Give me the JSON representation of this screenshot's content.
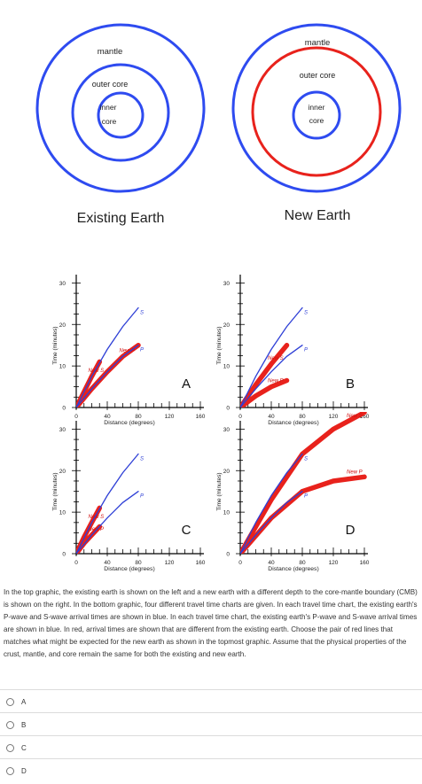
{
  "top_graphic": {
    "left": {
      "caption": "Existing Earth",
      "labels": {
        "mantle": "mantle",
        "outer_core": "outer core",
        "inner_1": "inner",
        "inner_2": "core"
      },
      "colors": {
        "mantle_boundary": "#2e4bf0",
        "cmb": "#2e4bf0",
        "inner_core": "#2e4bf0"
      }
    },
    "right": {
      "caption": "New Earth",
      "labels": {
        "mantle": "mantle",
        "outer_core": "outer core",
        "inner_1": "inner",
        "inner_2": "core"
      },
      "colors": {
        "mantle_boundary": "#2e4bf0",
        "cmb": "#e8221c",
        "inner_core": "#2e4bf0"
      }
    }
  },
  "chart_data": [
    {
      "type": "line",
      "panel": "A",
      "xlabel": "Distance (degrees)",
      "ylabel": "Time (minutes)",
      "xticks": [
        "0",
        "40",
        "80",
        "120",
        "160"
      ],
      "yticks": [
        "0",
        "10",
        "20",
        "30"
      ],
      "xlim": [
        0,
        160
      ],
      "ylim": [
        0,
        32
      ],
      "series": [
        {
          "name": "S",
          "color": "#2e3fd6",
          "x": [
            0,
            20,
            40,
            60,
            80
          ],
          "y": [
            0,
            7.5,
            14,
            19.5,
            24
          ]
        },
        {
          "name": "P",
          "color": "#2e3fd6",
          "x": [
            0,
            20,
            40,
            60,
            80
          ],
          "y": [
            0,
            4.5,
            8.6,
            12.3,
            15
          ]
        },
        {
          "name": "New S",
          "color": "#e8221c",
          "x": [
            0,
            20,
            30
          ],
          "y": [
            0,
            7.5,
            11
          ]
        },
        {
          "name": "New P",
          "color": "#e8221c",
          "x": [
            0,
            20,
            40,
            60,
            80
          ],
          "y": [
            0,
            4.5,
            8.6,
            12.3,
            15
          ]
        }
      ]
    },
    {
      "type": "line",
      "panel": "B",
      "xlabel": "Distance (degrees)",
      "ylabel": "Time (minutes)",
      "xticks": [
        "0",
        "40",
        "80",
        "120",
        "160"
      ],
      "yticks": [
        "0",
        "10",
        "20",
        "30"
      ],
      "xlim": [
        0,
        160
      ],
      "ylim": [
        0,
        32
      ],
      "series": [
        {
          "name": "S",
          "color": "#2e3fd6",
          "x": [
            0,
            20,
            40,
            60,
            80
          ],
          "y": [
            0,
            7.5,
            14,
            19.5,
            24
          ]
        },
        {
          "name": "P",
          "color": "#2e3fd6",
          "x": [
            0,
            20,
            40,
            60,
            80
          ],
          "y": [
            0,
            4.5,
            8.6,
            12.3,
            15
          ]
        },
        {
          "name": "New S",
          "color": "#e8221c",
          "x": [
            0,
            20,
            40,
            60
          ],
          "y": [
            0,
            5.5,
            10.5,
            15
          ]
        },
        {
          "name": "New P",
          "color": "#e8221c",
          "x": [
            0,
            20,
            40,
            60
          ],
          "y": [
            0,
            2.8,
            5,
            6.5
          ]
        }
      ]
    },
    {
      "type": "line",
      "panel": "C",
      "xlabel": "Distance (degrees)",
      "ylabel": "Time (minutes)",
      "xticks": [
        "0",
        "40",
        "80",
        "120",
        "160"
      ],
      "yticks": [
        "0",
        "10",
        "20",
        "30"
      ],
      "xlim": [
        0,
        160
      ],
      "ylim": [
        0,
        32
      ],
      "series": [
        {
          "name": "S",
          "color": "#2e3fd6",
          "x": [
            0,
            20,
            40,
            60,
            80
          ],
          "y": [
            0,
            7.5,
            14,
            19.5,
            24
          ]
        },
        {
          "name": "P",
          "color": "#2e3fd6",
          "x": [
            0,
            20,
            40,
            60,
            80
          ],
          "y": [
            0,
            4.5,
            8.6,
            12.3,
            15
          ]
        },
        {
          "name": "New S",
          "color": "#e8221c",
          "x": [
            0,
            10,
            20,
            30
          ],
          "y": [
            0,
            4,
            7.5,
            11
          ]
        },
        {
          "name": "New P",
          "color": "#e8221c",
          "x": [
            0,
            10,
            20,
            30
          ],
          "y": [
            0,
            2.5,
            4.5,
            6.5
          ]
        }
      ]
    },
    {
      "type": "line",
      "panel": "D",
      "xlabel": "Distance (degrees)",
      "ylabel": "Time (minutes)",
      "xticks": [
        "0",
        "40",
        "80",
        "120",
        "160"
      ],
      "yticks": [
        "0",
        "10",
        "20",
        "30"
      ],
      "xlim": [
        0,
        160
      ],
      "ylim": [
        0,
        32
      ],
      "series": [
        {
          "name": "S",
          "color": "#2e3fd6",
          "x": [
            0,
            20,
            40,
            60,
            80
          ],
          "y": [
            0,
            7.5,
            14,
            19.5,
            24
          ]
        },
        {
          "name": "P",
          "color": "#2e3fd6",
          "x": [
            0,
            20,
            40,
            60,
            80
          ],
          "y": [
            0,
            4.5,
            8.6,
            12.3,
            15
          ]
        },
        {
          "name": "New S",
          "color": "#e8221c",
          "x": [
            0,
            40,
            80,
            120,
            160
          ],
          "y": [
            0,
            13,
            24,
            30,
            34
          ]
        },
        {
          "name": "New P",
          "color": "#e8221c",
          "x": [
            0,
            40,
            80,
            120,
            160
          ],
          "y": [
            0,
            8.6,
            15,
            17.5,
            18.5
          ]
        }
      ]
    }
  ],
  "question": "In the top graphic, the existing earth is shown on the left and a new earth with a different depth to the core-mantle boundary (CMB) is shown on the right. In the bottom graphic, four different travel time charts are given. In each travel time chart, the existing earth's P-wave and S-wave arrival times are shown in blue. In each travel time chart, the existing earth's P-wave and S-wave arrival times are shown in blue. In red, arrival times are shown that are different from the existing earth. Choose the pair of red lines that matches what might be expected for the new earth as shown in the topmost graphic. Assume that the physical properties of the crust, mantle, and core remain the same for both the existing and new earth.",
  "options": [
    {
      "label": "A"
    },
    {
      "label": "B"
    },
    {
      "label": "C"
    },
    {
      "label": "D"
    }
  ]
}
